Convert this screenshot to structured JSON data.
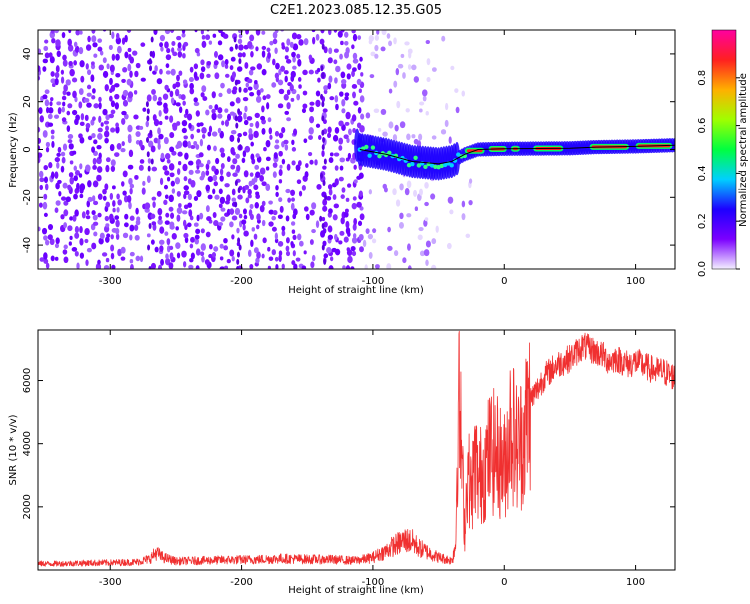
{
  "title": "C2E1.2023.085.12.35.G05",
  "chart_data": [
    {
      "type": "heatmap",
      "xlabel": "Height of straight line (km)",
      "ylabel": "Frequency (Hz)",
      "xlim": [
        -355,
        130
      ],
      "ylim": [
        -50,
        50
      ],
      "xticks": [
        -300,
        -200,
        -100,
        0,
        100
      ],
      "yticks": [
        -40,
        -20,
        0,
        20,
        40
      ],
      "grid": false,
      "colorbar": {
        "label": "Normalized spectral amplitude",
        "range": [
          0,
          1
        ],
        "ticks": [
          0.0,
          0.2,
          0.4,
          0.6,
          0.8
        ],
        "colors": [
          "#f4f0ff",
          "#7b00ff",
          "#1d00ff",
          "#00d0ff",
          "#00ff40",
          "#a0ff00",
          "#ffb000",
          "#ff2020",
          "#ff00a0"
        ]
      },
      "centerline": [
        [
          -110,
          0
        ],
        [
          -100,
          -1
        ],
        [
          -90,
          -2
        ],
        [
          -80,
          -3.5
        ],
        [
          -70,
          -5
        ],
        [
          -60,
          -5.5
        ],
        [
          -50,
          -6
        ],
        [
          -40,
          -5
        ],
        [
          -30,
          -2
        ],
        [
          -20,
          0
        ],
        [
          0,
          0.3
        ],
        [
          50,
          0.5
        ],
        [
          70,
          1
        ],
        [
          100,
          1.3
        ],
        [
          130,
          1.8
        ]
      ]
    },
    {
      "type": "line",
      "xlabel": "Height of straight line (km)",
      "ylabel": "SNR (10 * v/v)",
      "xlim": [
        -355,
        130
      ],
      "ylim": [
        0,
        7600
      ],
      "xticks": [
        -300,
        -200,
        -100,
        0,
        100
      ],
      "yticks": [
        2000,
        4000,
        6000
      ],
      "grid": false,
      "series": [
        {
          "color": "#f03030",
          "x": [
            -355,
            -340,
            -320,
            -300,
            -280,
            -270,
            -265,
            -260,
            -250,
            -230,
            -210,
            -190,
            -170,
            -150,
            -130,
            -115,
            -105,
            -100,
            -95,
            -90,
            -85,
            -80,
            -75,
            -70,
            -65,
            -60,
            -55,
            -50,
            -45,
            -40,
            -37,
            -35,
            -33,
            -30,
            -28,
            -25,
            -22,
            -20,
            -15,
            -10,
            -5,
            0,
            5,
            10,
            15,
            20,
            25,
            30,
            35,
            40,
            45,
            50,
            55,
            60,
            65,
            70,
            75,
            80,
            85,
            90,
            95,
            100,
            105,
            110,
            115,
            120,
            125,
            130
          ],
          "y": [
            200,
            200,
            220,
            230,
            250,
            350,
            550,
            400,
            280,
            300,
            320,
            330,
            360,
            340,
            330,
            300,
            350,
            400,
            500,
            600,
            750,
            850,
            950,
            900,
            700,
            600,
            500,
            400,
            350,
            300,
            800,
            5500,
            4200,
            1200,
            3200,
            2400,
            3600,
            2800,
            3300,
            3800,
            3600,
            3200,
            4700,
            3800,
            4300,
            5400,
            5700,
            6100,
            6300,
            6500,
            6600,
            6700,
            6900,
            7100,
            7000,
            6900,
            6800,
            6600,
            6700,
            6600,
            6500,
            6600,
            6500,
            6400,
            6300,
            6300,
            6200,
            6100
          ]
        }
      ]
    }
  ]
}
